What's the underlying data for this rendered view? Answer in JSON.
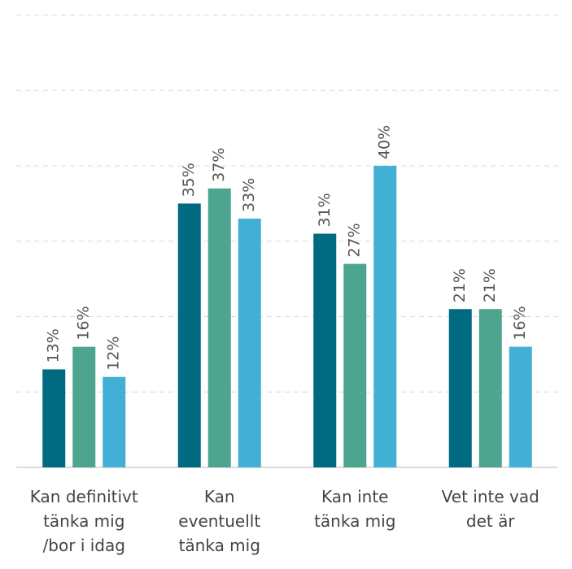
{
  "chart_data": {
    "type": "bar",
    "categories": [
      "Kan definitivt\ntänka mig\n/bor i idag",
      "Kan\neventuellt\ntänka mig",
      "Kan inte\ntänka mig",
      "Vet inte vad\ndet är"
    ],
    "series": [
      {
        "color": "#006a80",
        "values": [
          13,
          35,
          31,
          21
        ],
        "value_labels": [
          "13%",
          "35%",
          "31%",
          "21%"
        ]
      },
      {
        "color": "#4da58f",
        "values": [
          16,
          37,
          27,
          21
        ],
        "value_labels": [
          "16%",
          "37%",
          "27%",
          "21%"
        ]
      },
      {
        "color": "#41b0d4",
        "values": [
          12,
          33,
          40,
          16
        ],
        "value_labels": [
          "12%",
          "33%",
          "40%",
          "16%"
        ]
      }
    ],
    "ylim": [
      0,
      62
    ],
    "yticks": [
      0,
      10,
      20,
      30,
      40,
      50,
      60
    ],
    "grid": true
  }
}
